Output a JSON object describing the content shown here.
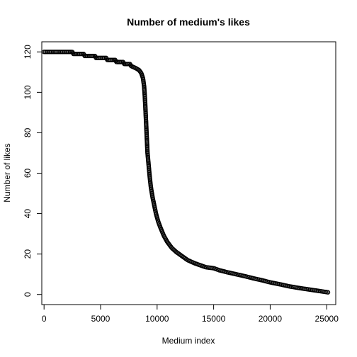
{
  "chart_data": {
    "type": "scatter",
    "title": "Number of medium's likes",
    "xlabel": "Medium index",
    "ylabel": "Number of likes",
    "xlim": [
      -200,
      25800
    ],
    "ylim": [
      -5,
      125
    ],
    "xticks": [
      0,
      5000,
      10000,
      15000,
      20000,
      25000
    ],
    "yticks": [
      0,
      20,
      40,
      60,
      80,
      100,
      120
    ],
    "marker": "open-circle",
    "grid": false,
    "legend": "none",
    "curve_points": [
      [
        0,
        120
      ],
      [
        2500,
        120
      ],
      [
        2600,
        119
      ],
      [
        3500,
        119
      ],
      [
        3600,
        118
      ],
      [
        4500,
        118
      ],
      [
        4600,
        117
      ],
      [
        5500,
        117
      ],
      [
        5600,
        116
      ],
      [
        6300,
        116
      ],
      [
        6400,
        115
      ],
      [
        7000,
        115
      ],
      [
        7100,
        114
      ],
      [
        7600,
        114
      ],
      [
        7700,
        113
      ],
      [
        8100,
        112
      ],
      [
        8400,
        111
      ],
      [
        8600,
        109.5
      ],
      [
        8750,
        107
      ],
      [
        8850,
        103
      ],
      [
        8900,
        99
      ],
      [
        8950,
        94
      ],
      [
        9000,
        88
      ],
      [
        9050,
        82
      ],
      [
        9100,
        76
      ],
      [
        9150,
        70
      ],
      [
        9250,
        64
      ],
      [
        9350,
        58
      ],
      [
        9450,
        53
      ],
      [
        9600,
        48
      ],
      [
        9750,
        44
      ],
      [
        9900,
        40
      ],
      [
        10100,
        36
      ],
      [
        10300,
        33
      ],
      [
        10600,
        29
      ],
      [
        10900,
        26
      ],
      [
        11300,
        23
      ],
      [
        11700,
        21
      ],
      [
        12200,
        19
      ],
      [
        12700,
        17
      ],
      [
        13300,
        15.5
      ],
      [
        13800,
        14.5
      ],
      [
        14300,
        13.5
      ],
      [
        15000,
        13
      ],
      [
        15500,
        12
      ],
      [
        16200,
        11
      ],
      [
        17000,
        10
      ],
      [
        17800,
        9
      ],
      [
        18500,
        8
      ],
      [
        19300,
        7
      ],
      [
        20000,
        6
      ],
      [
        20900,
        5
      ],
      [
        21700,
        4
      ],
      [
        22800,
        3
      ],
      [
        24000,
        2
      ],
      [
        25200,
        1
      ]
    ]
  },
  "colors": {
    "axis": "#000000",
    "marker_stroke": "#000000",
    "background": "#ffffff"
  }
}
